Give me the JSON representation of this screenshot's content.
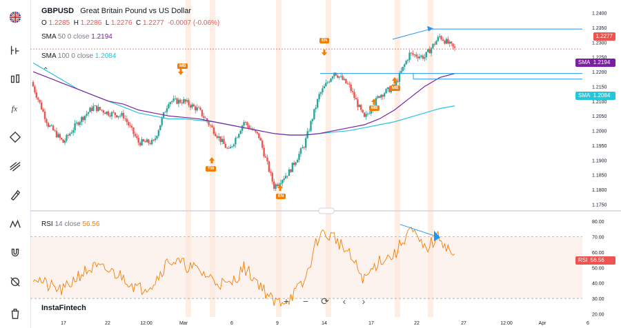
{
  "symbol": "GBPUSD",
  "description": "Great Britain Pound vs US Dollar",
  "ohlc": {
    "o_label": "O",
    "o": "1.2285",
    "h_label": "H",
    "h": "1.2286",
    "l_label": "L",
    "l": "1.2276",
    "c_label": "C",
    "c": "1.2277",
    "change": "-0.0007 (-0.06%)"
  },
  "sma50": {
    "label": "SMA",
    "params": "50 0 close",
    "value": "1.2194",
    "color": "#7b1fa2"
  },
  "sma100": {
    "label": "SMA",
    "params": "100 0 close",
    "value": "1.2084",
    "color": "#26c6da"
  },
  "rsi": {
    "label": "RSI",
    "params": "14 close",
    "value": "56.56",
    "color": "#f57c00"
  },
  "price_axis": [
    "1.2400",
    "1.2350",
    "1.2300",
    "1.2250",
    "1.2200",
    "1.2150",
    "1.2100",
    "1.2050",
    "1.2000",
    "1.1950",
    "1.1900",
    "1.1850",
    "1.1800",
    "1.1750"
  ],
  "rsi_axis": [
    "80.00",
    "70.00",
    "60.00",
    "50.00",
    "40.00",
    "30.00",
    "20.00"
  ],
  "time_axis": [
    "17",
    "22",
    "12:00",
    "Mar",
    "6",
    "9",
    "14",
    "17",
    "22",
    "27",
    "12:00",
    "Apr",
    "6"
  ],
  "tags": {
    "price": "1.2277",
    "sma50_label": "SMA",
    "sma50": "1.2194",
    "sma100_label": "SMA",
    "sma100": "1.2084",
    "rsi_label": "RSI",
    "rsi": "56.56"
  },
  "badges": [
    "MB",
    "TW",
    "EN",
    "EN",
    "MB",
    "MB"
  ],
  "brand": "InstaFintech",
  "colors": {
    "up": "#26a69a",
    "down": "#ef5350",
    "accent": "#2196f3",
    "orange": "#f57c00"
  },
  "chart_data": {
    "type": "candlestick",
    "x": [
      "Feb 14",
      "Feb 15",
      "Feb 16",
      "Feb 17",
      "Feb 20",
      "Feb 21",
      "Feb 22",
      "Feb 23",
      "Feb 24",
      "Feb 27",
      "Feb 28",
      "Mar 1",
      "Mar 2",
      "Mar 3",
      "Mar 6",
      "Mar 7",
      "Mar 8",
      "Mar 9",
      "Mar 10",
      "Mar 13",
      "Mar 14",
      "Mar 15",
      "Mar 16",
      "Mar 17",
      "Mar 20",
      "Mar 21",
      "Mar 22",
      "Mar 23",
      "Mar 24"
    ],
    "close": [
      1.215,
      1.202,
      1.196,
      1.203,
      1.208,
      1.206,
      1.205,
      1.196,
      1.196,
      1.21,
      1.21,
      1.207,
      1.2,
      1.193,
      1.203,
      1.198,
      1.181,
      1.186,
      1.195,
      1.212,
      1.22,
      1.215,
      1.204,
      1.212,
      1.215,
      1.226,
      1.225,
      1.232,
      1.2277
    ],
    "sma50": [
      1.22,
      1.218,
      1.216,
      1.214,
      1.212,
      1.21,
      1.209,
      1.207,
      1.206,
      1.205,
      1.2045,
      1.204,
      1.203,
      1.202,
      1.201,
      1.2,
      1.199,
      1.1985,
      1.1985,
      1.199,
      1.2,
      1.201,
      1.202,
      1.204,
      1.207,
      1.211,
      1.215,
      1.218,
      1.2194
    ],
    "sma100": [
      1.223,
      1.22,
      1.217,
      1.214,
      1.212,
      1.21,
      1.208,
      1.206,
      1.205,
      1.204,
      1.204,
      1.2035,
      1.203,
      1.202,
      1.201,
      1.2,
      1.199,
      1.1985,
      1.1985,
      1.199,
      1.1995,
      1.2,
      1.201,
      1.202,
      1.203,
      1.2045,
      1.206,
      1.2075,
      1.2084
    ],
    "rsi": [
      45,
      38,
      35,
      45,
      50,
      48,
      44,
      36,
      40,
      55,
      52,
      48,
      42,
      38,
      50,
      40,
      27,
      30,
      40,
      72,
      70,
      58,
      42,
      55,
      58,
      75,
      62,
      70,
      56.56
    ],
    "ylim": [
      1.173,
      1.242
    ],
    "rsi_ylim": [
      18,
      85
    ]
  }
}
